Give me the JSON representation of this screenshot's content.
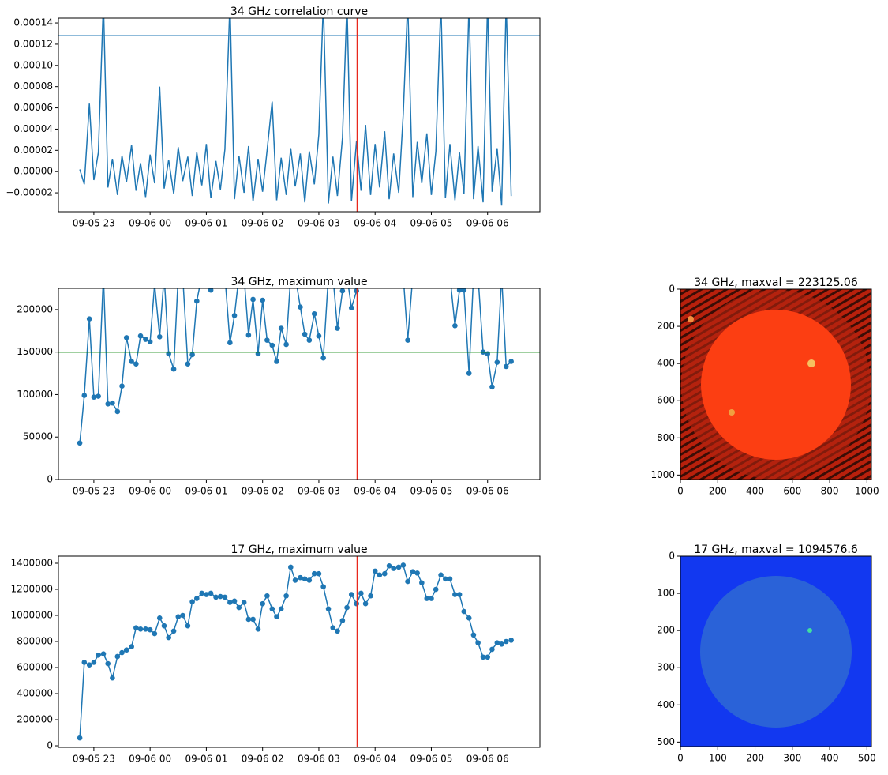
{
  "chart_data": [
    {
      "type": "line",
      "title": "34 GHz correlation curve",
      "color": "#1f77b4",
      "markers": false,
      "x": [
        22.75,
        22.83,
        22.92,
        23,
        23.08,
        23.17,
        23.25,
        23.33,
        23.42,
        23.5,
        23.58,
        23.67,
        23.75,
        23.83,
        23.92,
        24,
        24.08,
        24.17,
        24.25,
        24.33,
        24.42,
        24.5,
        24.58,
        24.67,
        24.75,
        24.83,
        24.92,
        25,
        25.08,
        25.17,
        25.25,
        25.33,
        25.42,
        25.5,
        25.58,
        25.67,
        25.75,
        25.83,
        25.92,
        26,
        26.08,
        26.17,
        26.25,
        26.33,
        26.42,
        26.5,
        26.58,
        26.67,
        26.75,
        26.83,
        26.92,
        27,
        27.08,
        27.17,
        27.25,
        27.33,
        27.42,
        27.5,
        27.58,
        27.67,
        27.75,
        27.83,
        27.92,
        28,
        28.08,
        28.17,
        28.25,
        28.33,
        28.42,
        28.5,
        28.58,
        28.67,
        28.75,
        28.83,
        28.92,
        29,
        29.08,
        29.17,
        29.25,
        29.33,
        29.42,
        29.5,
        29.58,
        29.67,
        29.75,
        29.83,
        29.92,
        30,
        30.08,
        30.17,
        30.25,
        30.33,
        30.42
      ],
      "values": [
        2e-06,
        -1.2e-05,
        6.4e-05,
        -8e-06,
        1.8e-05,
        0.00016,
        -1.5e-05,
        1.2e-05,
        -2.2e-05,
        1.5e-05,
        -1e-05,
        2.5e-05,
        -1.8e-05,
        8e-06,
        -2.4e-05,
        1.6e-05,
        -1.1e-05,
        8e-05,
        -1.6e-05,
        1.1e-05,
        -2.1e-05,
        2.3e-05,
        -9e-06,
        1.4e-05,
        -2.3e-05,
        1.8e-05,
        -1.3e-05,
        2.6e-05,
        -2.5e-05,
        1e-05,
        -1.7e-05,
        2.1e-05,
        0.00016,
        -2.6e-05,
        1.5e-05,
        -2e-05,
        2.4e-05,
        -2.8e-05,
        1.2e-05,
        -1.9e-05,
        2e-05,
        6.6e-05,
        -2.7e-05,
        1.3e-05,
        -2.2e-05,
        2.2e-05,
        -1.4e-05,
        1.7e-05,
        -2.9e-05,
        1.9e-05,
        -1.2e-05,
        3.5e-05,
        0.00016,
        -3e-05,
        1.4e-05,
        -2.3e-05,
        3.2e-05,
        0.00016,
        -2.8e-05,
        2.9e-05,
        -1.8e-05,
        4.4e-05,
        -2.2e-05,
        2.6e-05,
        -1.5e-05,
        3.8e-05,
        -2.6e-05,
        1.7e-05,
        -2e-05,
        5.4e-05,
        0.00016,
        -2.4e-05,
        2.8e-05,
        -1.1e-05,
        3.6e-05,
        -2.2e-05,
        1.9e-05,
        0.00016,
        -2.5e-05,
        2.6e-05,
        -2.7e-05,
        1.8e-05,
        -2.1e-05,
        0.00016,
        -2.6e-05,
        2.4e-05,
        -2.9e-05,
        0.00016,
        -1.9e-05,
        2.2e-05,
        -3.2e-05,
        0.00016,
        -2.3e-05
      ],
      "xlim": [
        22.37,
        30.93
      ],
      "xticks": [
        {
          "value": 23,
          "label": "09-05 23"
        },
        {
          "value": 24,
          "label": "09-06 00"
        },
        {
          "value": 25,
          "label": "09-06 01"
        },
        {
          "value": 26,
          "label": "09-06 02"
        },
        {
          "value": 27,
          "label": "09-06 03"
        },
        {
          "value": 28,
          "label": "09-06 04"
        },
        {
          "value": 29,
          "label": "09-06 05"
        },
        {
          "value": 30,
          "label": "09-06 06"
        }
      ],
      "ylim": [
        -3.78e-05,
        0.0001445
      ],
      "yticks": [
        {
          "value": -2e-05,
          "label": "−0.00002"
        },
        {
          "value": 0,
          "label": "0.00000"
        },
        {
          "value": 2e-05,
          "label": "0.00002"
        },
        {
          "value": 4e-05,
          "label": "0.00004"
        },
        {
          "value": 6e-05,
          "label": "0.00006"
        },
        {
          "value": 8e-05,
          "label": "0.00008"
        },
        {
          "value": 0.0001,
          "label": "0.00010"
        },
        {
          "value": 0.00012,
          "label": "0.00012"
        },
        {
          "value": 0.00014,
          "label": "0.00014"
        }
      ],
      "hlines": [
        {
          "value": 0.000128,
          "color": "#1f77b4"
        }
      ],
      "vlines": [
        {
          "value": 27.68,
          "color": "#e8281c"
        }
      ]
    },
    {
      "type": "line",
      "title": "34 GHz, maximum value",
      "color": "#1f77b4",
      "markers": true,
      "x": [
        22.75,
        22.83,
        22.92,
        23,
        23.08,
        23.17,
        23.25,
        23.33,
        23.42,
        23.5,
        23.58,
        23.67,
        23.75,
        23.83,
        23.92,
        24,
        24.08,
        24.17,
        24.25,
        24.33,
        24.42,
        24.5,
        24.58,
        24.67,
        24.75,
        24.83,
        24.92,
        25,
        25.08,
        25.17,
        25.25,
        25.33,
        25.42,
        25.5,
        25.58,
        25.67,
        25.75,
        25.83,
        25.92,
        26,
        26.08,
        26.17,
        26.25,
        26.33,
        26.42,
        26.5,
        26.58,
        26.67,
        26.75,
        26.83,
        26.92,
        27,
        27.08,
        27.17,
        27.25,
        27.33,
        27.42,
        27.5,
        27.58,
        27.67,
        27.75,
        27.83,
        27.92,
        28,
        28.08,
        28.17,
        28.25,
        28.33,
        28.42,
        28.5,
        28.58,
        28.67,
        28.75,
        28.83,
        28.92,
        29,
        29.08,
        29.17,
        29.25,
        29.33,
        29.42,
        29.5,
        29.58,
        29.67,
        29.75,
        29.83,
        29.92,
        30,
        30.08,
        30.17,
        30.25,
        30.33,
        30.42
      ],
      "values": [
        43000,
        99000,
        189000,
        97000,
        98000,
        240000,
        89000,
        90000,
        80000,
        110000,
        167000,
        139000,
        136000,
        169000,
        165000,
        162000,
        230000,
        168000,
        240000,
        148000,
        130000,
        240000,
        240000,
        136000,
        147000,
        210000,
        240000,
        240000,
        223000,
        240000,
        240000,
        240000,
        161000,
        193000,
        240000,
        240000,
        170000,
        212000,
        148000,
        211000,
        164000,
        158000,
        139000,
        178000,
        159000,
        240000,
        240000,
        203000,
        171000,
        164000,
        195000,
        169000,
        143000,
        240000,
        240000,
        178000,
        222000,
        240000,
        202000,
        222000,
        240000,
        240000,
        240000,
        240000,
        240000,
        240000,
        240000,
        240000,
        240000,
        240000,
        164000,
        240000,
        240000,
        240000,
        240000,
        240000,
        240000,
        240000,
        240000,
        240000,
        181000,
        223000,
        223000,
        125000,
        240000,
        240000,
        150000,
        148000,
        109000,
        138000,
        240000,
        133000,
        139000
      ],
      "xlim": [
        22.37,
        30.93
      ],
      "xticks": [
        {
          "value": 23,
          "label": "09-05 23"
        },
        {
          "value": 24,
          "label": "09-06 00"
        },
        {
          "value": 25,
          "label": "09-06 01"
        },
        {
          "value": 26,
          "label": "09-06 02"
        },
        {
          "value": 27,
          "label": "09-06 03"
        },
        {
          "value": 28,
          "label": "09-06 04"
        },
        {
          "value": 29,
          "label": "09-06 05"
        },
        {
          "value": 30,
          "label": "09-06 06"
        }
      ],
      "ylim": [
        0,
        225000
      ],
      "yticks": [
        0,
        50000,
        100000,
        150000,
        200000
      ],
      "hlines": [
        {
          "value": 150000,
          "color": "#008000"
        }
      ],
      "vlines": [
        {
          "value": 27.68,
          "color": "#e8281c"
        }
      ]
    },
    {
      "type": "line",
      "title": "17 GHz, maximum value",
      "color": "#1f77b4",
      "markers": true,
      "x": [
        22.75,
        22.83,
        22.92,
        23,
        23.08,
        23.17,
        23.25,
        23.33,
        23.42,
        23.5,
        23.58,
        23.67,
        23.75,
        23.83,
        23.92,
        24,
        24.08,
        24.17,
        24.25,
        24.33,
        24.42,
        24.5,
        24.58,
        24.67,
        24.75,
        24.83,
        24.92,
        25,
        25.08,
        25.17,
        25.25,
        25.33,
        25.42,
        25.5,
        25.58,
        25.67,
        25.75,
        25.83,
        25.92,
        26,
        26.08,
        26.17,
        26.25,
        26.33,
        26.42,
        26.5,
        26.58,
        26.67,
        26.75,
        26.83,
        26.92,
        27,
        27.08,
        27.17,
        27.25,
        27.33,
        27.42,
        27.5,
        27.58,
        27.67,
        27.75,
        27.83,
        27.92,
        28,
        28.08,
        28.17,
        28.25,
        28.33,
        28.42,
        28.5,
        28.58,
        28.67,
        28.75,
        28.83,
        28.92,
        29,
        29.08,
        29.17,
        29.25,
        29.33,
        29.42,
        29.5,
        29.58,
        29.67,
        29.75,
        29.83,
        29.92,
        30,
        30.08,
        30.17,
        30.25,
        30.33,
        30.42
      ],
      "values": [
        60000,
        640000,
        620000,
        640000,
        695000,
        705000,
        630000,
        520000,
        685000,
        715000,
        735000,
        760000,
        905000,
        895000,
        895000,
        890000,
        860000,
        980000,
        920000,
        830000,
        880000,
        990000,
        1000000,
        920000,
        1105000,
        1130000,
        1170000,
        1160000,
        1170000,
        1140000,
        1145000,
        1140000,
        1100000,
        1110000,
        1060000,
        1100000,
        970000,
        970000,
        895000,
        1090000,
        1150000,
        1050000,
        990000,
        1050000,
        1150000,
        1370000,
        1270000,
        1290000,
        1280000,
        1270000,
        1320000,
        1320000,
        1220000,
        1050000,
        905000,
        880000,
        960000,
        1060000,
        1160000,
        1090000,
        1170000,
        1090000,
        1150000,
        1340000,
        1310000,
        1320000,
        1380000,
        1360000,
        1370000,
        1385000,
        1260000,
        1335000,
        1325000,
        1250000,
        1130000,
        1130000,
        1200000,
        1310000,
        1280000,
        1280000,
        1160000,
        1160000,
        1030000,
        980000,
        850000,
        790000,
        680000,
        680000,
        740000,
        790000,
        780000,
        800000,
        810000
      ],
      "xlim": [
        22.37,
        30.93
      ],
      "xticks": [
        {
          "value": 23,
          "label": "09-05 23"
        },
        {
          "value": 24,
          "label": "09-06 00"
        },
        {
          "value": 25,
          "label": "09-06 01"
        },
        {
          "value": 26,
          "label": "09-06 02"
        },
        {
          "value": 27,
          "label": "09-06 03"
        },
        {
          "value": 28,
          "label": "09-06 04"
        },
        {
          "value": 29,
          "label": "09-06 05"
        },
        {
          "value": 30,
          "label": "09-06 06"
        }
      ],
      "ylim": [
        -12000,
        1454500
      ],
      "yticks": [
        0,
        200000,
        400000,
        600000,
        800000,
        1000000,
        1200000,
        1400000
      ],
      "vlines": [
        {
          "value": 27.68,
          "color": "#e8281c"
        }
      ]
    },
    {
      "type": "image",
      "title": "34 GHz, maxval = 223125.06",
      "xlim": [
        0,
        1024
      ],
      "xticks": [
        0,
        200,
        400,
        600,
        800,
        1000
      ],
      "ylim": [
        1024,
        0
      ],
      "yticks": [
        0,
        200,
        400,
        600,
        800,
        1000
      ]
    },
    {
      "type": "image",
      "title": "17 GHz, maxval = 1094576.6",
      "xlim": [
        0,
        512
      ],
      "xticks": [
        0,
        100,
        200,
        300,
        400,
        500
      ],
      "ylim": [
        512,
        0
      ],
      "yticks": [
        0,
        100,
        200,
        300,
        400,
        500
      ]
    }
  ]
}
